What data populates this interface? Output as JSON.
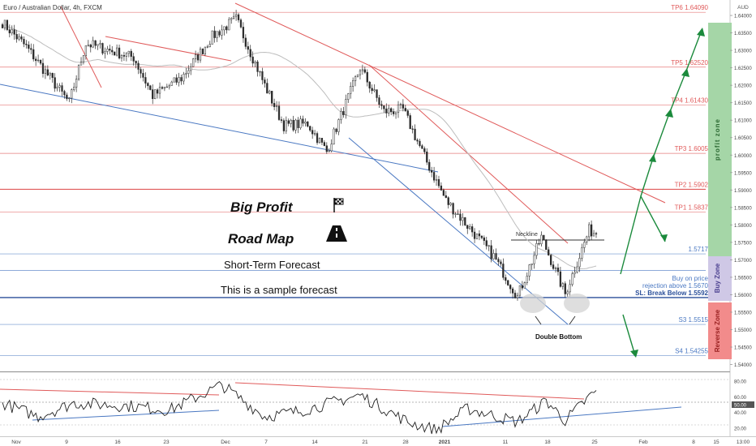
{
  "header": {
    "symbol_title": "Euro / Australian Dollar, 4h, FXCM",
    "currency": "AUD"
  },
  "annotations": {
    "big_profit": "Big Profit",
    "road_map": "Road Map",
    "short_term": "Short-Term Forecast",
    "sample": "This is a sample forecast",
    "neckline": "Neckline",
    "double_bottom": "Double Bottom",
    "buy_on_price": "Buy on price",
    "rejection": "rejection above 1.5670"
  },
  "levels": [
    {
      "label": "TP6 1.64090",
      "price": 1.6409,
      "color": "#e05a5a"
    },
    {
      "label": "TP5 1.62520",
      "price": 1.6252,
      "color": "#e05a5a"
    },
    {
      "label": "TP4 1.61430",
      "price": 1.6143,
      "color": "#e05a5a"
    },
    {
      "label": "TP3 1.6005",
      "price": 1.6005,
      "color": "#e05a5a"
    },
    {
      "label": "TP2 1.5902",
      "price": 1.5902,
      "color": "#e05a5a"
    },
    {
      "label": "TP1 1.5837",
      "price": 1.5837,
      "color": "#e05a5a"
    },
    {
      "label": "1.5717",
      "price": 1.5717,
      "color": "#4a78c2"
    },
    {
      "label": "SL: Break Below 1.5592",
      "price": 1.5592,
      "color": "#2a4f9a"
    },
    {
      "label": "S3 1.5515",
      "price": 1.5515,
      "color": "#4a78c2"
    },
    {
      "label": "S4 1.54255",
      "price": 1.54255,
      "color": "#4a78c2"
    }
  ],
  "zones": {
    "profit": "profit zone",
    "buy": "Buy Zone",
    "reverse": "Reverse Zone"
  },
  "colors": {
    "profit_zone": "#a5d6a7",
    "buy_zone": "#cfc8e6",
    "reverse_zone": "#f28b8b",
    "arrow": "#1b8a3c",
    "up_candle": "#ffffff",
    "down_candle": "#2b2b2b"
  },
  "chart_data": {
    "type": "candlestick",
    "y_ticks": [
      "1.64000",
      "1.63500",
      "1.63000",
      "1.62500",
      "1.62000",
      "1.61500",
      "1.61000",
      "1.60500",
      "1.60000",
      "1.59500",
      "1.59000",
      "1.58500",
      "1.58000",
      "1.57500",
      "1.57000",
      "1.56500",
      "1.56000",
      "1.55500",
      "1.55000",
      "1.54500",
      "1.54000"
    ],
    "ylim": [
      1.5385,
      1.6435
    ],
    "x_ticks": [
      "Nov",
      "9",
      "16",
      "23",
      "Dec",
      "7",
      "14",
      "21",
      "28",
      "2021",
      "11",
      "18",
      "25",
      "Feb",
      "8",
      "15",
      "22"
    ],
    "x_tick_end": "13:00",
    "path_key_points": [
      {
        "bar": 0,
        "price": 1.638
      },
      {
        "bar": 10,
        "price": 1.631
      },
      {
        "bar": 28,
        "price": 1.615
      },
      {
        "bar": 35,
        "price": 1.632
      },
      {
        "bar": 55,
        "price": 1.628
      },
      {
        "bar": 63,
        "price": 1.617
      },
      {
        "bar": 75,
        "price": 1.622
      },
      {
        "bar": 88,
        "price": 1.634
      },
      {
        "bar": 98,
        "price": 1.639
      },
      {
        "bar": 110,
        "price": 1.62
      },
      {
        "bar": 118,
        "price": 1.6085
      },
      {
        "bar": 128,
        "price": 1.609
      },
      {
        "bar": 136,
        "price": 1.601
      },
      {
        "bar": 150,
        "price": 1.625
      },
      {
        "bar": 160,
        "price": 1.6125
      },
      {
        "bar": 168,
        "price": 1.613
      },
      {
        "bar": 178,
        "price": 1.598
      },
      {
        "bar": 186,
        "price": 1.587
      },
      {
        "bar": 196,
        "price": 1.579
      },
      {
        "bar": 206,
        "price": 1.571
      },
      {
        "bar": 216,
        "price": 1.5595
      },
      {
        "bar": 226,
        "price": 1.5765
      },
      {
        "bar": 236,
        "price": 1.5602
      },
      {
        "bar": 246,
        "price": 1.5785
      },
      {
        "bar": 249,
        "price": 1.5775
      }
    ],
    "oscillator": {
      "y_ticks": [
        "80.00",
        "60.00",
        "50.00",
        "40.00",
        "20.00"
      ],
      "ylim": [
        12,
        88
      ],
      "path_key_points": [
        {
          "bar": 0,
          "value": 52
        },
        {
          "bar": 15,
          "value": 35
        },
        {
          "bar": 30,
          "value": 52
        },
        {
          "bar": 55,
          "value": 48
        },
        {
          "bar": 70,
          "value": 43
        },
        {
          "bar": 92,
          "value": 75
        },
        {
          "bar": 110,
          "value": 35
        },
        {
          "bar": 125,
          "value": 42
        },
        {
          "bar": 150,
          "value": 62
        },
        {
          "bar": 170,
          "value": 28
        },
        {
          "bar": 182,
          "value": 18
        },
        {
          "bar": 195,
          "value": 45
        },
        {
          "bar": 216,
          "value": 28
        },
        {
          "bar": 228,
          "value": 55
        },
        {
          "bar": 236,
          "value": 30
        },
        {
          "bar": 249,
          "value": 68
        }
      ]
    }
  }
}
